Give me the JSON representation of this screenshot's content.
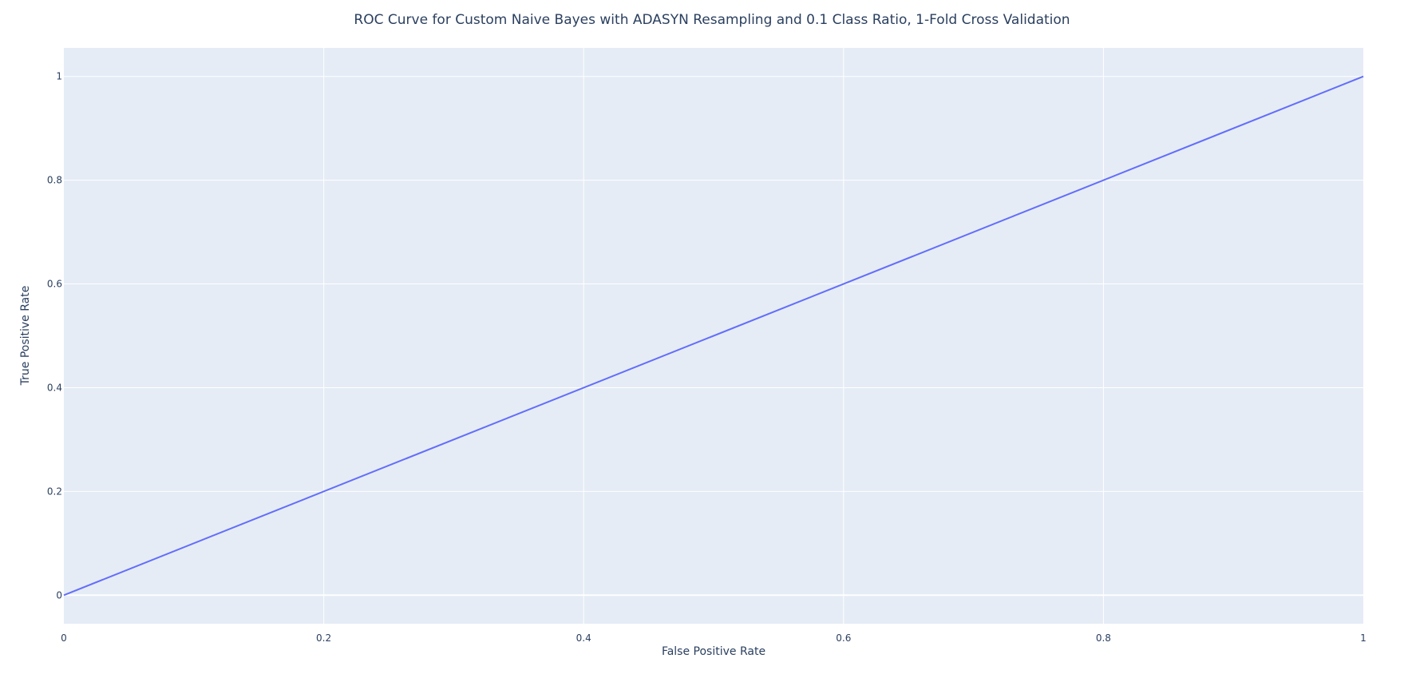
{
  "chart_data": {
    "type": "line",
    "title": "ROC Curve for Custom Naive Bayes with ADASYN Resampling and 0.1 Class Ratio, 1-Fold Cross Validation",
    "xlabel": "False Positive Rate",
    "ylabel": "True Positive Rate",
    "xlim": [
      0,
      1
    ],
    "ylim": [
      -0.055,
      1.055
    ],
    "xticks": [
      0,
      0.2,
      0.4,
      0.6,
      0.8,
      1
    ],
    "xtick_labels": [
      "0",
      "0.2",
      "0.4",
      "0.6",
      "0.8",
      "1"
    ],
    "yticks": [
      0,
      0.2,
      0.4,
      0.6,
      0.8,
      1
    ],
    "ytick_labels": [
      "0",
      "0.2",
      "0.4",
      "0.6",
      "0.8",
      "1"
    ],
    "grid": true,
    "legend": "none",
    "series": [
      {
        "x": [
          0,
          1
        ],
        "y": [
          0,
          1
        ],
        "color": "#636efa"
      }
    ],
    "colors": {
      "plot_background": "#e5ecf6",
      "grid": "#ffffff",
      "text": "#2a3f5f"
    }
  }
}
